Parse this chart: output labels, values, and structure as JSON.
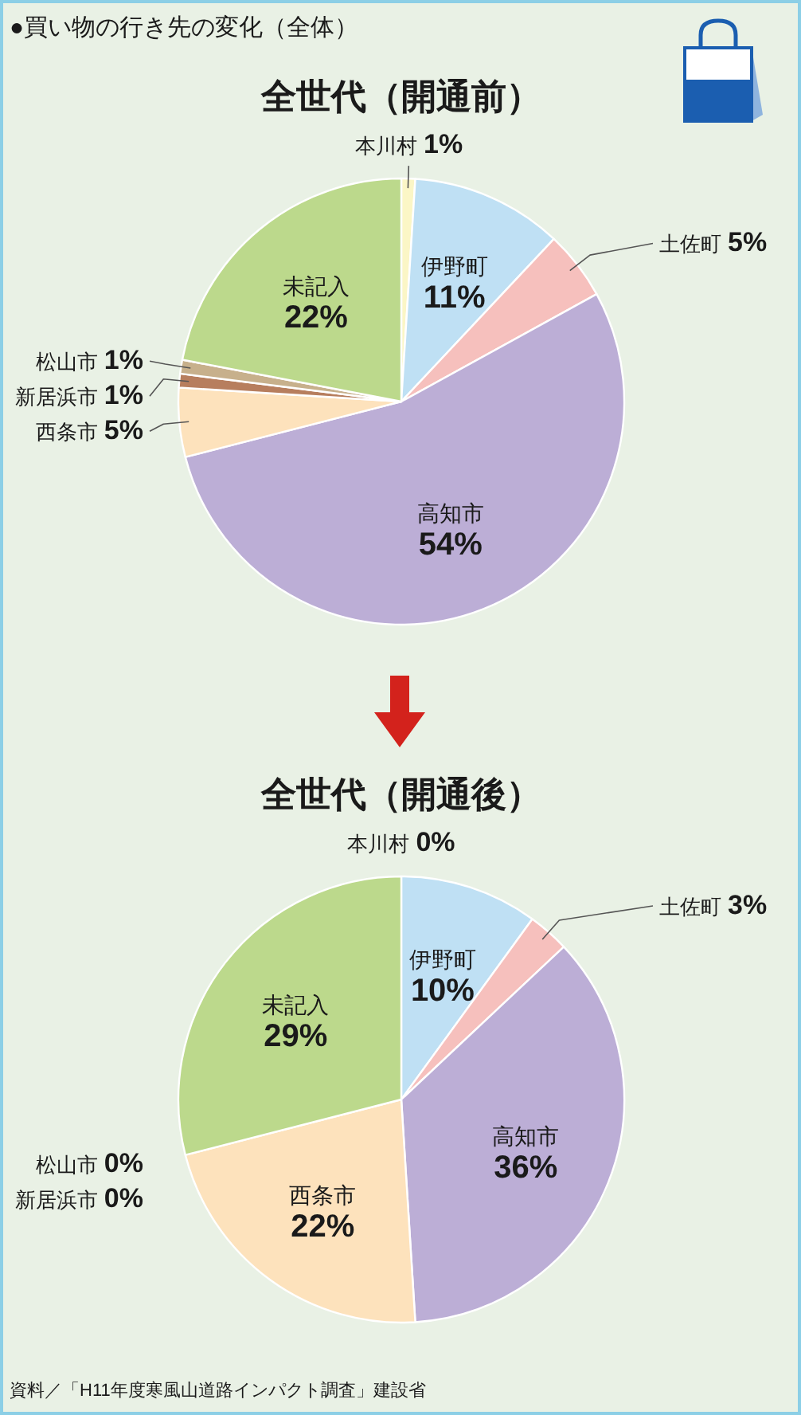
{
  "chart_data": [
    {
      "type": "pie",
      "title": "●買い物の行き先の変化（全体）",
      "subtitle": "全世代（開通前）",
      "categories": [
        "本川村",
        "伊野町",
        "土佐町",
        "高知市",
        "西条市",
        "新居浜市",
        "松山市",
        "未記入"
      ],
      "values": [
        1,
        11,
        5,
        54,
        5,
        1,
        1,
        22
      ],
      "value_labels": [
        "1%",
        "11%",
        "5%",
        "54%",
        "5%",
        "1%",
        "1%",
        "22%"
      ],
      "colors": [
        "#fbf6c6",
        "#bfe0f4",
        "#f6c0bd",
        "#bcaed6",
        "#fde2bc",
        "#b77e5e",
        "#c7b08c",
        "#bcd98c"
      ]
    },
    {
      "type": "pie",
      "title": "全世代（開通後）",
      "categories": [
        "本川村",
        "伊野町",
        "土佐町",
        "高知市",
        "西条市",
        "新居浜市",
        "松山市",
        "未記入"
      ],
      "values": [
        0,
        10,
        3,
        36,
        22,
        0,
        0,
        29
      ],
      "value_labels": [
        "0%",
        "10%",
        "3%",
        "36%",
        "22%",
        "0%",
        "0%",
        "29%"
      ],
      "colors": [
        null,
        "#bfe0f4",
        "#f6c0bd",
        "#bcaed6",
        "#fde2bc",
        null,
        null,
        "#bcd98c"
      ],
      "annotations": [
        "資料／「H11年度寒風山道路インパクト調査」建設省"
      ]
    }
  ]
}
